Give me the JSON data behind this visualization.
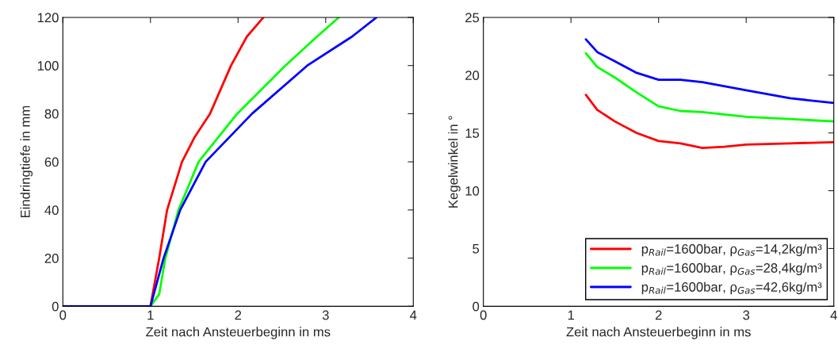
{
  "chart_data": [
    {
      "type": "line",
      "xlabel": "Zeit nach Ansteuerbeginn in ms",
      "ylabel": "Eindringtiefe in mm",
      "xlim": [
        0,
        4
      ],
      "ylim": [
        0,
        120
      ],
      "xticks": [
        0,
        1,
        2,
        3,
        4
      ],
      "yticks": [
        0,
        20,
        40,
        60,
        80,
        100,
        120
      ],
      "grid": false,
      "legend": false,
      "series": [
        {
          "color": "#ff0000",
          "x": [
            0,
            1.0,
            1.1,
            1.19,
            1.36,
            1.5,
            1.68,
            1.92,
            2.1,
            2.29
          ],
          "values": [
            0,
            0,
            20,
            40,
            60,
            70,
            80,
            100,
            112,
            120
          ]
        },
        {
          "color": "#00ff00",
          "x": [
            0,
            1.0,
            1.1,
            1.17,
            1.32,
            1.55,
            1.99,
            2.54,
            2.9,
            3.15
          ],
          "values": [
            0,
            0,
            5,
            20,
            40,
            60,
            80,
            100,
            112,
            120
          ]
        },
        {
          "color": "#0000ff",
          "x": [
            0,
            1.0,
            1.15,
            1.34,
            1.63,
            2.16,
            2.79,
            3.3,
            3.58
          ],
          "values": [
            0,
            0,
            20,
            40,
            60,
            80,
            100,
            112,
            120
          ]
        }
      ]
    },
    {
      "type": "line",
      "xlabel": "Zeit nach Ansteuerbeginn in ms",
      "ylabel": "Kegelwinkel in °",
      "xlim": [
        0,
        4
      ],
      "ylim": [
        0,
        25
      ],
      "xticks": [
        0,
        1,
        2,
        3,
        4
      ],
      "yticks": [
        0,
        5,
        10,
        15,
        20,
        25
      ],
      "grid": false,
      "legend": "bottom right",
      "series": [
        {
          "name": "p$_{Rail}$=1600bar, ρ$_{Gas}$=14,2kg/m³",
          "color": "#ff0000",
          "x": [
            1.17,
            1.3,
            1.5,
            1.75,
            2.0,
            2.25,
            2.5,
            2.75,
            3.0,
            3.5,
            4.0
          ],
          "values": [
            18.3,
            17.0,
            16.0,
            15.0,
            14.3,
            14.1,
            13.7,
            13.8,
            14.0,
            14.1,
            14.2
          ]
        },
        {
          "name": "p$_{Rail}$=1600bar, ρ$_{Gas}$=28,4kg/m³",
          "color": "#00ff00",
          "x": [
            1.17,
            1.3,
            1.5,
            1.75,
            2.0,
            2.25,
            2.5,
            3.0,
            3.5,
            4.0
          ],
          "values": [
            21.9,
            20.7,
            19.8,
            18.5,
            17.3,
            16.9,
            16.8,
            16.4,
            16.2,
            16.0
          ]
        },
        {
          "name": "p$_{Rail}$=1600bar, ρ$_{Gas}$=42,6kg/m³",
          "color": "#0000ff",
          "x": [
            1.17,
            1.3,
            1.5,
            1.75,
            2.0,
            2.25,
            2.5,
            3.0,
            3.5,
            4.0
          ],
          "values": [
            23.1,
            22.0,
            21.2,
            20.2,
            19.6,
            19.6,
            19.4,
            18.7,
            18.0,
            17.6
          ]
        }
      ]
    }
  ]
}
